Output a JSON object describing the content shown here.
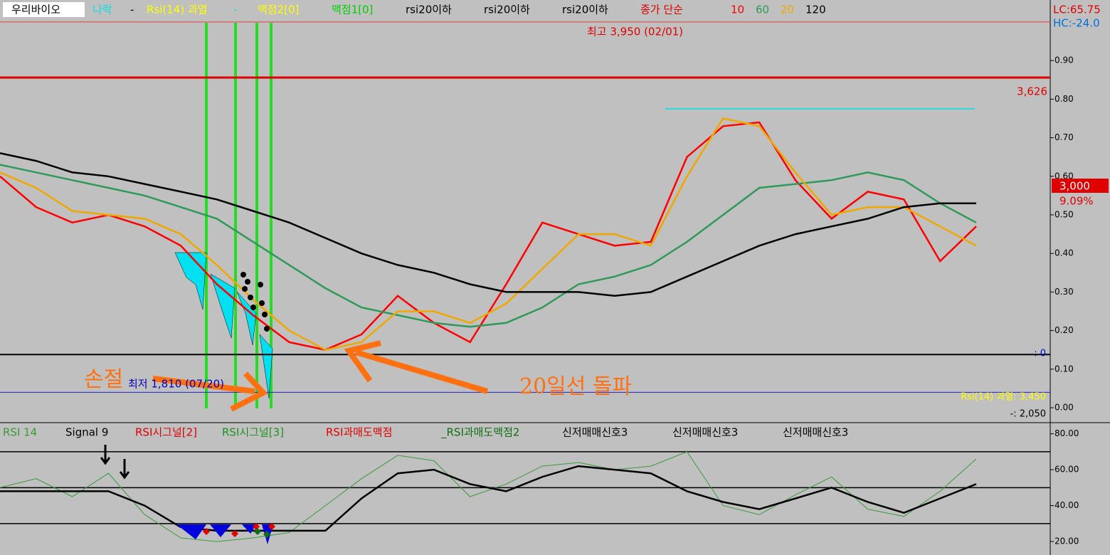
{
  "chart_data": [
    {
      "type": "line",
      "legend_labels": [
        "우리바이오",
        "나락",
        "-",
        "Rsi(14) 과열",
        "-",
        "맥점2[0]",
        "맥점1[0]",
        "rsi20이하",
        "rsi20이하",
        "rsi20이하",
        "종가 단순"
      ],
      "categories": [
        null,
        null,
        null,
        null,
        null,
        null,
        null,
        null,
        null,
        null,
        null,
        null,
        null,
        null,
        null,
        null,
        null,
        null,
        null,
        null,
        null,
        null,
        null,
        null,
        null,
        null,
        null,
        null
      ],
      "series": [
        {
          "name": "10",
          "color": "#ff0000",
          "values": [
            0.6,
            0.52,
            0.48,
            0.5,
            0.47,
            0.42,
            0.32,
            0.24,
            0.17,
            0.15,
            0.19,
            0.29,
            0.22,
            0.17,
            0.32,
            0.48,
            0.45,
            0.42,
            0.43,
            0.65,
            0.73,
            0.74,
            0.59,
            0.49,
            0.56,
            0.54,
            0.38,
            0.47
          ]
        },
        {
          "name": "60",
          "color": "#2e9a5a",
          "values": [
            0.63,
            0.61,
            0.59,
            0.57,
            0.55,
            0.52,
            0.49,
            0.43,
            0.37,
            0.31,
            0.26,
            0.24,
            0.22,
            0.21,
            0.22,
            0.26,
            0.32,
            0.34,
            0.37,
            0.43,
            0.5,
            0.57,
            0.58,
            0.59,
            0.61,
            0.59,
            0.53,
            0.48
          ]
        },
        {
          "name": "20",
          "color": "#f0a800",
          "values": [
            0.61,
            0.57,
            0.51,
            0.5,
            0.49,
            0.45,
            0.37,
            0.28,
            0.2,
            0.15,
            0.17,
            0.25,
            0.25,
            0.22,
            0.27,
            0.36,
            0.45,
            0.45,
            0.42,
            0.6,
            0.75,
            0.73,
            0.61,
            0.5,
            0.52,
            0.52,
            0.47,
            0.42
          ]
        },
        {
          "name": "120",
          "color": "#000000",
          "values": [
            0.66,
            0.64,
            0.61,
            0.6,
            0.58,
            0.56,
            0.54,
            0.51,
            0.48,
            0.44,
            0.4,
            0.37,
            0.35,
            0.32,
            0.3,
            0.3,
            0.3,
            0.29,
            0.3,
            0.34,
            0.38,
            0.42,
            0.45,
            0.47,
            0.49,
            0.52,
            0.53,
            0.53
          ]
        }
      ],
      "ylim": [
        -0.035,
        1.057
      ],
      "yticks": [
        {
          "value": 0,
          "label": "0.00"
        },
        {
          "value": 0.1,
          "label": "0.10"
        },
        {
          "value": 0.2,
          "label": "0.20"
        },
        {
          "value": 0.3,
          "label": "0.30"
        },
        {
          "value": 0.4,
          "label": "0.40"
        },
        {
          "value": 0.5,
          "label": "0.50"
        },
        {
          "value": 0.6,
          "label": "0.60"
        },
        {
          "value": 0.7,
          "label": "0.70"
        },
        {
          "value": 0.8,
          "label": "0.80"
        },
        {
          "value": 0.9,
          "label": "0.90"
        }
      ],
      "levels": [
        {
          "value": 1.0,
          "color": "#e04040",
          "width": 1
        },
        {
          "value": 0.856,
          "color": "#e00000",
          "width": 3
        },
        {
          "value": 0.138,
          "color": "#000000",
          "width": 2
        },
        {
          "value": 0.04,
          "color": "#2020c0",
          "width": 1
        }
      ],
      "annotations": [
        "최고 3,950 (02/01)",
        "최저 1,810 (07/20)",
        "3,626",
        "손절",
        "20일선 돌파",
        "LC:65.75",
        "HC:-24.0",
        "3,000",
        "9.09%",
        "Rsi(14) 과열: 3,450",
        "-: 2,050",
        ": 0"
      ]
    },
    {
      "type": "line",
      "legend_labels": [
        "RSI시그널[2]",
        "RSI시그널[3]",
        "RSI과매도맥점",
        "_RSI과매도맥점2",
        "신저매매신호3",
        "신저매매신호3",
        "신저매매신호3"
      ],
      "categories": [
        null,
        null,
        null,
        null,
        null,
        null,
        null,
        null,
        null,
        null,
        null,
        null,
        null,
        null,
        null,
        null,
        null,
        null,
        null,
        null,
        null,
        null,
        null,
        null,
        null,
        null,
        null,
        null
      ],
      "series": [
        {
          "name": "RSI 14",
          "color": "#3a9a3a",
          "values": [
            50,
            55,
            45,
            58,
            35,
            22,
            20,
            22,
            25,
            40,
            55,
            68,
            65,
            45,
            52,
            62,
            64,
            60,
            62,
            70,
            40,
            35,
            46,
            56,
            38,
            34,
            48,
            66
          ]
        },
        {
          "name": "Signal 9",
          "color": "#000000",
          "values": [
            48,
            48,
            48,
            48,
            40,
            28,
            26,
            26,
            26,
            26,
            44,
            58,
            60,
            52,
            48,
            56,
            62,
            60,
            58,
            48,
            42,
            38,
            44,
            50,
            42,
            36,
            44,
            52
          ]
        }
      ],
      "ylim": [
        12.5,
        85
      ],
      "yticks": [
        {
          "value": 20,
          "label": "20.00"
        },
        {
          "value": 40,
          "label": "40.00"
        },
        {
          "value": 60,
          "label": "60.00"
        },
        {
          "value": 80,
          "label": "80.00"
        }
      ],
      "levels": [
        {
          "value": 70,
          "color": "#000000",
          "width": 1.5
        },
        {
          "value": 50,
          "color": "#000000",
          "width": 1.5
        },
        {
          "value": 30,
          "color": "#000000",
          "width": 1.5
        }
      ]
    }
  ]
}
